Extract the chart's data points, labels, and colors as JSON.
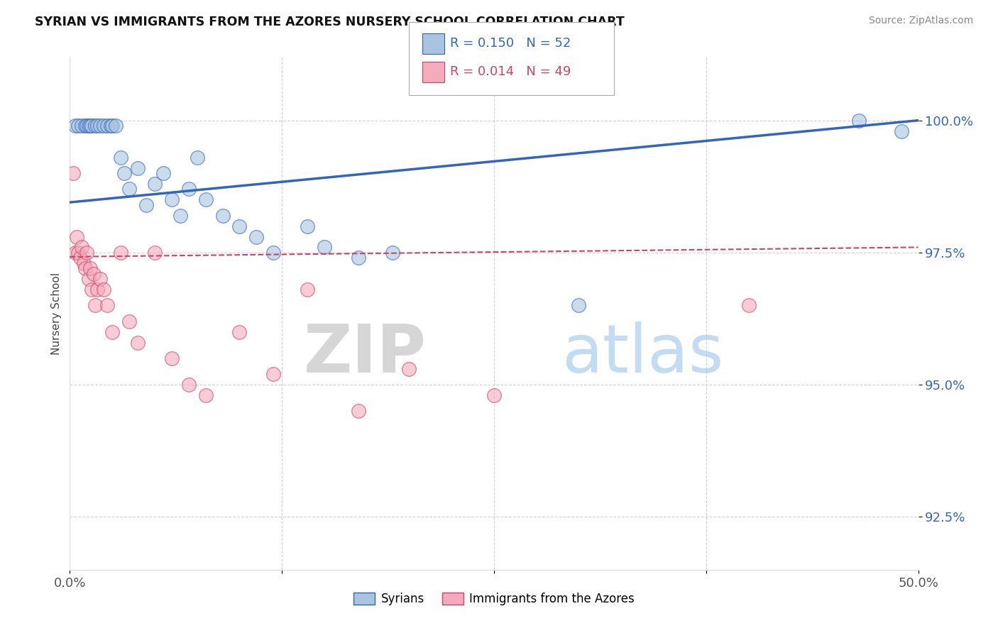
{
  "title": "SYRIAN VS IMMIGRANTS FROM THE AZORES NURSERY SCHOOL CORRELATION CHART",
  "source": "Source: ZipAtlas.com",
  "ylabel": "Nursery School",
  "xlim": [
    0.0,
    50.0
  ],
  "ylim": [
    91.5,
    101.2
  ],
  "yticks": [
    92.5,
    95.0,
    97.5,
    100.0
  ],
  "legend_blue_r": "R = 0.150",
  "legend_blue_n": "N = 52",
  "legend_pink_r": "R = 0.014",
  "legend_pink_n": "N = 49",
  "legend_label_blue": "Syrians",
  "legend_label_pink": "Immigrants from the Azores",
  "blue_color": "#A8C4E0",
  "pink_color": "#F4AABB",
  "trend_blue_color": "#3366BB",
  "trend_pink_color": "#CC4466",
  "watermark_zip": "ZIP",
  "watermark_atlas": "atlas",
  "blue_trend_x0": 0.0,
  "blue_trend_y0": 98.45,
  "blue_trend_x1": 50.0,
  "blue_trend_y1": 100.0,
  "pink_trend_x0": 0.0,
  "pink_trend_y0": 97.42,
  "pink_trend_x1": 50.0,
  "pink_trend_y1": 97.6,
  "blue_scatter_x": [
    0.3,
    0.5,
    0.7,
    0.9,
    1.0,
    1.1,
    1.2,
    1.3,
    1.5,
    1.6,
    1.8,
    2.0,
    2.2,
    2.4,
    2.5,
    2.7,
    3.0,
    3.2,
    3.5,
    4.0,
    4.5,
    5.0,
    5.5,
    6.0,
    6.5,
    7.0,
    7.5,
    8.0,
    9.0,
    10.0,
    11.0,
    12.0,
    14.0,
    15.0,
    17.0,
    19.0,
    30.0,
    46.5,
    49.0
  ],
  "blue_scatter_y": [
    99.9,
    99.9,
    99.9,
    99.9,
    99.9,
    99.9,
    99.9,
    99.9,
    99.9,
    99.9,
    99.9,
    99.9,
    99.9,
    99.9,
    99.9,
    99.9,
    99.3,
    99.0,
    98.7,
    99.1,
    98.4,
    98.8,
    99.0,
    98.5,
    98.2,
    98.7,
    99.3,
    98.5,
    98.2,
    98.0,
    97.8,
    97.5,
    98.0,
    97.6,
    97.4,
    97.5,
    96.5,
    100.0,
    99.8
  ],
  "pink_scatter_x": [
    0.2,
    0.3,
    0.4,
    0.5,
    0.6,
    0.7,
    0.8,
    0.9,
    1.0,
    1.1,
    1.2,
    1.3,
    1.4,
    1.5,
    1.6,
    1.8,
    2.0,
    2.2,
    2.5,
    3.0,
    3.5,
    4.0,
    5.0,
    6.0,
    7.0,
    8.0,
    10.0,
    12.0,
    14.0,
    17.0,
    20.0,
    25.0,
    40.0
  ],
  "pink_scatter_y": [
    99.0,
    97.5,
    97.8,
    97.5,
    97.4,
    97.6,
    97.3,
    97.2,
    97.5,
    97.0,
    97.2,
    96.8,
    97.1,
    96.5,
    96.8,
    97.0,
    96.8,
    96.5,
    96.0,
    97.5,
    96.2,
    95.8,
    97.5,
    95.5,
    95.0,
    94.8,
    96.0,
    95.2,
    96.8,
    94.5,
    95.3,
    94.8,
    96.5
  ]
}
